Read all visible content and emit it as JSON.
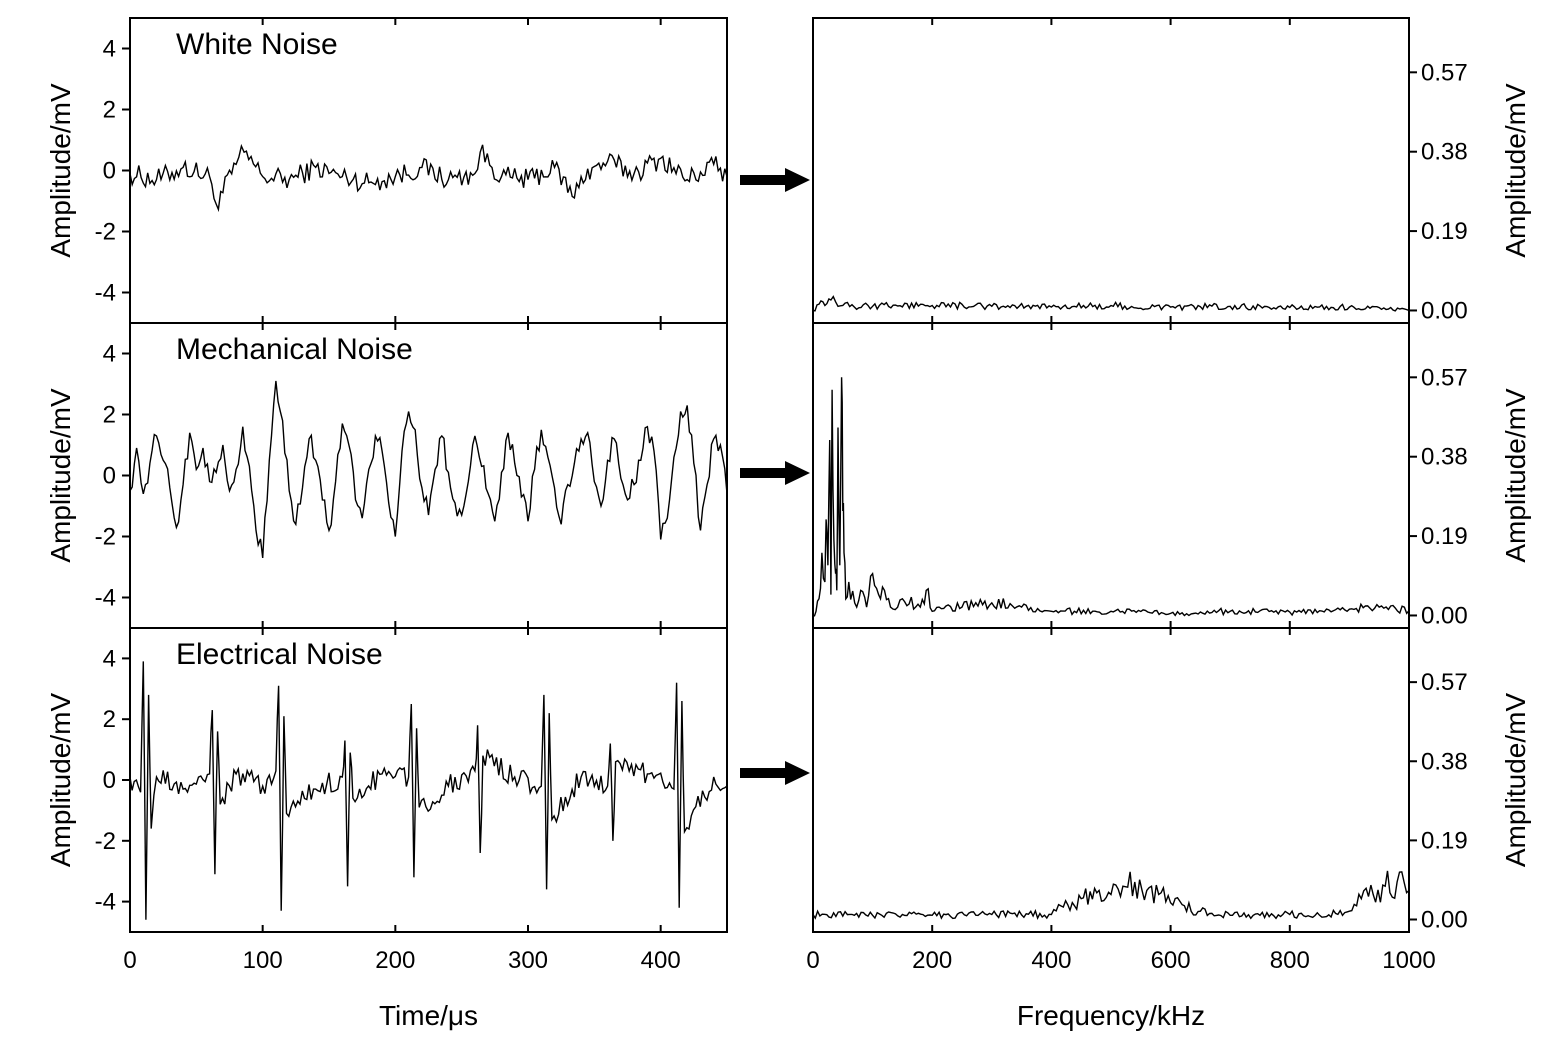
{
  "figure": {
    "time_xlabel": "Time/μs",
    "freq_xlabel": "Frequency/kHz",
    "time_ylabel": "Amplitude/mV",
    "freq_ylabel": "Amplitude/mV",
    "time_xticks": [
      "0",
      "100",
      "200",
      "300",
      "400"
    ],
    "freq_xticks": [
      "0",
      "200",
      "400",
      "600",
      "800",
      "1000"
    ],
    "time_yticks": [
      "4",
      "2",
      "0",
      "-2",
      "-4"
    ],
    "freq_yticks": [
      "0.57",
      "0.38",
      "0.19",
      "0.00"
    ],
    "panel_titles": [
      "White Noise",
      "Mechanical Noise",
      "Electrical Noise"
    ]
  },
  "chart_data": [
    {
      "type": "line",
      "title": "White Noise",
      "xlabel": "Time/μs",
      "ylabel": "Amplitude/mV",
      "xlim": [
        0,
        450
      ],
      "ylim": [
        -5,
        5
      ],
      "xticks": [
        0,
        100,
        200,
        300,
        400
      ],
      "yticks": [
        4,
        2,
        0,
        -2,
        -4
      ],
      "grid": false,
      "x": [
        0,
        20,
        40,
        60,
        65,
        80,
        86,
        100,
        120,
        140,
        160,
        180,
        200,
        220,
        240,
        260,
        264,
        280,
        300,
        320,
        335,
        340,
        360,
        380,
        400,
        420,
        440,
        450
      ],
      "series": [
        {
          "values": [
            -0.1,
            -0.3,
            0.1,
            -0.2,
            -1.1,
            0.2,
            0.6,
            -0.2,
            -0.3,
            0.1,
            -0.2,
            -0.4,
            -0.2,
            0.1,
            -0.3,
            -0.1,
            0.6,
            -0.2,
            -0.3,
            0.1,
            -0.9,
            -0.2,
            0.3,
            -0.1,
            0.4,
            -0.3,
            0.2,
            -0.2
          ]
        }
      ]
    },
    {
      "type": "line",
      "title": "Mechanical Noise",
      "xlabel": "Time/μs",
      "ylabel": "Amplitude/mV",
      "xlim": [
        0,
        450
      ],
      "ylim": [
        -5,
        5
      ],
      "xticks": [
        0,
        100,
        200,
        300,
        400
      ],
      "yticks": [
        4,
        2,
        0,
        -2,
        -4
      ],
      "grid": false,
      "x": [
        0,
        5,
        10,
        15,
        20,
        25,
        30,
        35,
        40,
        45,
        50,
        55,
        60,
        65,
        70,
        75,
        80,
        85,
        90,
        95,
        100,
        105,
        110,
        115,
        120,
        125,
        130,
        135,
        140,
        145,
        150,
        155,
        160,
        165,
        170,
        175,
        180,
        185,
        190,
        195,
        200,
        205,
        210,
        215,
        220,
        225,
        230,
        235,
        240,
        245,
        250,
        255,
        260,
        265,
        270,
        275,
        280,
        285,
        290,
        295,
        300,
        305,
        310,
        315,
        320,
        325,
        330,
        335,
        340,
        345,
        350,
        355,
        360,
        365,
        370,
        375,
        380,
        385,
        390,
        395,
        400,
        405,
        410,
        415,
        420,
        425,
        430,
        435,
        440,
        445,
        450
      ],
      "series": [
        {
          "values": [
            -0.5,
            0.9,
            -0.6,
            0.4,
            1.3,
            0.5,
            -0.4,
            -1.7,
            -0.3,
            1.4,
            0.2,
            0.9,
            -0.2,
            0.1,
            1.0,
            -0.5,
            0.2,
            1.6,
            0.3,
            -1.8,
            -2.7,
            0.5,
            3.1,
            1.8,
            -0.5,
            -1.6,
            -0.4,
            1.2,
            0.5,
            -0.8,
            -1.8,
            -0.2,
            1.7,
            1.0,
            -0.8,
            -1.4,
            0.2,
            1.3,
            0.8,
            -0.9,
            -2.0,
            0.8,
            2.1,
            1.5,
            -0.4,
            -1.3,
            0.2,
            1.3,
            0.1,
            -0.9,
            -1.3,
            -0.2,
            1.3,
            0.3,
            -0.6,
            -1.5,
            0.1,
            1.4,
            0.4,
            -0.7,
            -1.5,
            0.2,
            1.5,
            0.6,
            -0.4,
            -1.6,
            -0.3,
            0.4,
            1.2,
            1.4,
            -0.2,
            -1.0,
            0.5,
            1.2,
            -0.1,
            -0.8,
            -0.3,
            0.5,
            1.6,
            0.8,
            -2.1,
            -1.4,
            0.6,
            2.1,
            2.3,
            0.4,
            -1.8,
            -0.3,
            1.2,
            1.0,
            -0.6
          ]
        }
      ]
    },
    {
      "type": "line",
      "title": "Electrical Noise",
      "xlabel": "Time/μs",
      "ylabel": "Amplitude/mV",
      "xlim": [
        0,
        450
      ],
      "ylim": [
        -5,
        5
      ],
      "xticks": [
        0,
        100,
        200,
        300,
        400
      ],
      "yticks": [
        4,
        2,
        0,
        -2,
        -4
      ],
      "grid": false,
      "x": [
        0,
        8,
        10,
        12,
        14,
        16,
        20,
        40,
        60,
        62,
        64,
        66,
        68,
        80,
        100,
        110,
        112,
        114,
        116,
        118,
        140,
        160,
        162,
        164,
        166,
        168,
        190,
        210,
        212,
        214,
        216,
        218,
        240,
        260,
        262,
        264,
        266,
        290,
        310,
        312,
        314,
        316,
        318,
        340,
        360,
        362,
        364,
        366,
        390,
        410,
        412,
        414,
        416,
        418,
        440,
        450
      ],
      "series": [
        {
          "values": [
            0.1,
            -0.4,
            3.9,
            -4.6,
            2.8,
            -1.6,
            0.1,
            -0.3,
            0.2,
            2.3,
            -3.1,
            1.6,
            -0.8,
            0.2,
            -0.2,
            0.3,
            3.1,
            -4.3,
            2.1,
            -1.1,
            -0.3,
            0.1,
            1.3,
            -3.5,
            0.9,
            -0.6,
            0.2,
            0.1,
            2.5,
            -3.2,
            1.7,
            -0.9,
            -0.2,
            0.3,
            1.8,
            -2.4,
            0.8,
            0.1,
            -0.2,
            2.8,
            -3.6,
            2.2,
            -1.3,
            0.1,
            -0.2,
            1.2,
            -2.0,
            0.6,
            0.2,
            -0.3,
            3.2,
            -4.2,
            2.6,
            -1.7,
            0.1,
            -0.2
          ]
        }
      ]
    },
    {
      "type": "line",
      "xlabel": "Frequency/kHz",
      "ylabel": "Amplitude/mV",
      "xlim": [
        0,
        1000
      ],
      "ylim": [
        -0.03,
        0.7
      ],
      "xticks": [
        0,
        200,
        400,
        600,
        800,
        1000
      ],
      "yticks": [
        0.57,
        0.38,
        0.19,
        0.0
      ],
      "grid": false,
      "x": [
        0,
        10,
        20,
        30,
        50,
        100,
        200,
        300,
        400,
        500,
        600,
        700,
        800,
        900,
        1000
      ],
      "series": [
        {
          "values": [
            0.0,
            0.015,
            0.012,
            0.025,
            0.012,
            0.01,
            0.012,
            0.01,
            0.008,
            0.012,
            0.008,
            0.01,
            0.007,
            0.008,
            0.0
          ]
        }
      ]
    },
    {
      "type": "line",
      "xlabel": "Frequency/kHz",
      "ylabel": "Amplitude/mV",
      "xlim": [
        0,
        1000
      ],
      "ylim": [
        -0.03,
        0.7
      ],
      "xticks": [
        0,
        200,
        400,
        600,
        800,
        1000
      ],
      "yticks": [
        0.57,
        0.38,
        0.19,
        0.0
      ],
      "grid": false,
      "x": [
        0,
        5,
        10,
        15,
        20,
        22,
        25,
        28,
        30,
        32,
        35,
        38,
        40,
        42,
        45,
        48,
        50,
        52,
        55,
        60,
        70,
        80,
        90,
        100,
        110,
        120,
        130,
        150,
        180,
        190,
        200,
        250,
        300,
        350,
        400,
        500,
        600,
        700,
        800,
        900,
        950,
        1000
      ],
      "series": [
        {
          "values": [
            0.0,
            0.01,
            0.04,
            0.15,
            0.08,
            0.23,
            0.12,
            0.42,
            0.05,
            0.54,
            0.18,
            0.1,
            0.06,
            0.45,
            0.12,
            0.57,
            0.25,
            0.15,
            0.04,
            0.08,
            0.03,
            0.06,
            0.02,
            0.1,
            0.05,
            0.06,
            0.02,
            0.04,
            0.02,
            0.06,
            0.01,
            0.02,
            0.03,
            0.02,
            0.01,
            0.01,
            0.005,
            0.01,
            0.008,
            0.015,
            0.02,
            0.012
          ]
        }
      ]
    },
    {
      "type": "line",
      "xlabel": "Frequency/kHz",
      "ylabel": "Amplitude/mV",
      "xlim": [
        0,
        1000
      ],
      "ylim": [
        -0.03,
        0.7
      ],
      "xticks": [
        0,
        200,
        400,
        600,
        800,
        1000
      ],
      "yticks": [
        0.57,
        0.38,
        0.19,
        0.0
      ],
      "grid": false,
      "x": [
        0,
        100,
        200,
        300,
        400,
        420,
        450,
        480,
        500,
        520,
        540,
        560,
        580,
        600,
        650,
        700,
        750,
        800,
        850,
        900,
        920,
        940,
        960,
        980,
        1000
      ],
      "series": [
        {
          "values": [
            0.012,
            0.01,
            0.01,
            0.012,
            0.012,
            0.03,
            0.05,
            0.07,
            0.06,
            0.08,
            0.09,
            0.07,
            0.06,
            0.04,
            0.02,
            0.01,
            0.01,
            0.012,
            0.01,
            0.02,
            0.05,
            0.06,
            0.08,
            0.09,
            0.07
          ]
        }
      ]
    }
  ]
}
